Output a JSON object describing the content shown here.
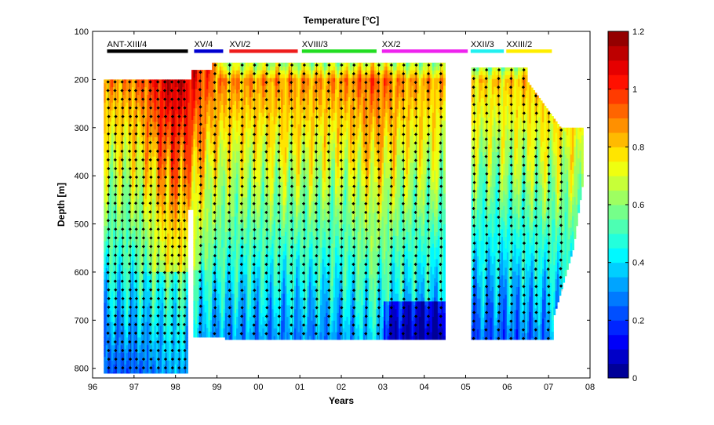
{
  "chart_data": {
    "type": "heatmap",
    "title": "Temperature [°C]",
    "xlabel": "Years",
    "ylabel": "Depth [m]",
    "x_ticks": [
      "96",
      "97",
      "98",
      "99",
      "00",
      "01",
      "02",
      "03",
      "04",
      "05",
      "06",
      "07",
      "08"
    ],
    "xlim": [
      1996,
      2008
    ],
    "y_ticks": [
      100,
      200,
      300,
      400,
      500,
      600,
      700,
      800
    ],
    "ylim": [
      100,
      820
    ],
    "y_reversed": true,
    "colorbar": {
      "ticks": [
        0,
        0.2,
        0.4,
        0.6,
        0.8,
        1,
        1.2
      ],
      "tick_labels": [
        "0",
        "0.2",
        "0.4",
        "0.6",
        "0.8",
        "1",
        "1.2"
      ],
      "range": [
        0,
        1.2
      ]
    },
    "cruises": [
      {
        "name": "ANT-XIII/4",
        "start": 1996.35,
        "end": 1998.3,
        "color": "#000000"
      },
      {
        "name": "XV/4",
        "start": 1998.45,
        "end": 1999.15,
        "color": "#0000d0"
      },
      {
        "name": "XVI/2",
        "start": 1999.3,
        "end": 2000.95,
        "color": "#ee1c1c"
      },
      {
        "name": "XVIII/3",
        "start": 2001.05,
        "end": 2002.85,
        "color": "#22dd22"
      },
      {
        "name": "XX/2",
        "start": 2002.98,
        "end": 2005.05,
        "color": "#ee22ee"
      },
      {
        "name": "XXII/3",
        "start": 2005.12,
        "end": 2005.92,
        "color": "#22f0f0"
      },
      {
        "name": "XXIII/2",
        "start": 2005.98,
        "end": 2007.08,
        "color": "#ffee00"
      }
    ],
    "profile_years": [
      1996.38,
      1996.55,
      1996.72,
      1996.9,
      1997.05,
      1997.22,
      1997.4,
      1997.58,
      1997.75,
      1997.92,
      1998.08,
      1998.22,
      1998.6,
      1998.95,
      1999.3,
      1999.6,
      1999.9,
      2000.2,
      2000.5,
      2000.8,
      2001.1,
      2001.4,
      2001.7,
      2002.0,
      2002.3,
      2002.6,
      2002.9,
      2003.2,
      2003.5,
      2003.8,
      2004.1,
      2004.4,
      2005.2,
      2005.5,
      2005.8,
      2006.1,
      2006.4,
      2006.7,
      2007.0,
      2007.3
    ],
    "grid": false
  }
}
